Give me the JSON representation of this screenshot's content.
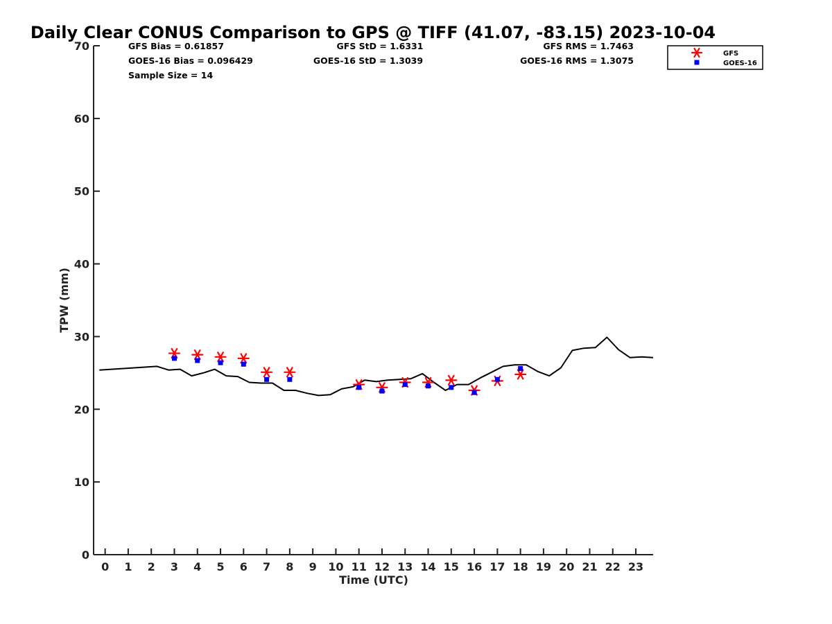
{
  "chart_data": {
    "type": "line",
    "title": "Daily Clear CONUS Comparison to GPS @ TIFF (41.07, -83.15) 2023-10-04",
    "xlabel": "Time (UTC)",
    "ylabel": "TPW (mm)",
    "xlim": [
      -0.5,
      23.75
    ],
    "ylim": [
      0,
      70
    ],
    "xticks": [
      0,
      1,
      2,
      3,
      4,
      5,
      6,
      7,
      8,
      9,
      10,
      11,
      12,
      13,
      14,
      15,
      16,
      17,
      18,
      19,
      20,
      21,
      22,
      23
    ],
    "yticks": [
      0,
      10,
      20,
      30,
      40,
      50,
      60,
      70
    ],
    "grid": false,
    "legend_position": "top-right",
    "stats": {
      "gfs_bias": "GFS Bias = 0.61857",
      "goes_bias": "GOES-16 Bias = 0.096429",
      "sample_size": "Sample Size = 14",
      "gfs_std": "GFS StD = 1.6331",
      "goes_std": "GOES-16 StD = 1.3039",
      "gfs_rms": "GFS RMS = 1.7463",
      "goes_rms": "GOES-16 RMS = 1.3075"
    },
    "series": [
      {
        "kind": "line",
        "color": "#000000",
        "x": [
          -0.25,
          2.25,
          2.75,
          3.25,
          3.75,
          4.25,
          4.75,
          5.25,
          5.75,
          6.25,
          6.75,
          7.25,
          7.75,
          8.25,
          8.75,
          9.25,
          9.75,
          10.25,
          10.75,
          11.25,
          11.75,
          12.25,
          12.75,
          13.25,
          13.75,
          14.25,
          14.75,
          15.25,
          15.75,
          16.25,
          16.75,
          17.25,
          17.75,
          18.25,
          18.75,
          19.25,
          19.75,
          20.25,
          20.75,
          21.25,
          21.75,
          22.25,
          22.75,
          23.25,
          23.75
        ],
        "y": [
          25.4,
          25.9,
          25.4,
          25.5,
          24.6,
          25.0,
          25.5,
          24.6,
          24.5,
          23.7,
          23.6,
          23.6,
          22.6,
          22.6,
          22.2,
          21.9,
          22.0,
          22.8,
          23.1,
          24.0,
          23.8,
          24.0,
          24.1,
          24.2,
          24.9,
          23.7,
          22.6,
          23.4,
          23.4,
          24.3,
          25.1,
          25.9,
          26.1,
          26.1,
          25.2,
          24.6,
          25.7,
          28.1,
          28.4,
          28.5,
          29.9,
          28.2,
          27.1,
          27.2,
          27.1
        ]
      },
      {
        "name": "GFS",
        "kind": "scatter",
        "marker": "asterisk",
        "color": "#ff0000",
        "x": [
          3,
          4,
          5,
          6,
          7,
          8,
          11,
          12,
          13,
          14,
          15,
          16,
          17,
          18
        ],
        "y": [
          27.7,
          27.5,
          27.2,
          27.0,
          25.1,
          25.1,
          23.4,
          23.0,
          23.7,
          23.7,
          24.0,
          22.6,
          23.9,
          24.8
        ]
      },
      {
        "name": "GOES-16",
        "kind": "scatter",
        "marker": "square",
        "color": "#0000ff",
        "x": [
          3,
          4,
          5,
          6,
          7,
          8,
          11,
          12,
          13,
          14,
          15,
          16,
          17,
          18
        ],
        "y": [
          27.0,
          26.7,
          26.4,
          26.2,
          24.1,
          24.1,
          23.0,
          22.5,
          23.4,
          23.2,
          23.0,
          22.3,
          24.1,
          25.6
        ]
      }
    ]
  }
}
